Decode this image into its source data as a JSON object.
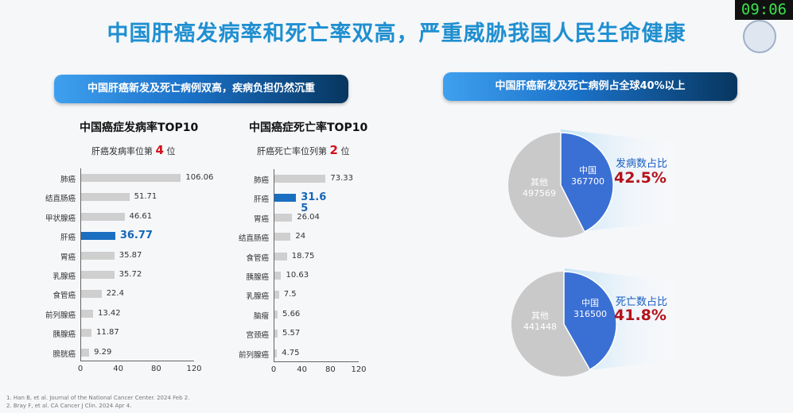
{
  "timer": "09:06",
  "title": "中国肝癌发病率和死亡率双高，严重威胁我国人民生命健康",
  "banner_left": "中国肝癌新发及死亡病例双高，疾病负担仍然沉重",
  "banner_right": "中国肝癌新发及死亡病例占全球40%以上",
  "incidence": {
    "title": "中国癌症发病率TOP10",
    "subtitle_pre": "肝癌发病率位第",
    "rank": "4",
    "subtitle_post": "位",
    "highlight_index": 3,
    "categories": [
      "肺癌",
      "结直肠癌",
      "甲状腺癌",
      "肝癌",
      "胃癌",
      "乳腺癌",
      "食管癌",
      "前列腺癌",
      "胰腺癌",
      "膀胱癌"
    ],
    "values": [
      106.06,
      51.71,
      46.61,
      36.77,
      35.87,
      35.72,
      22.4,
      13.42,
      11.87,
      9.29
    ],
    "value_labels": [
      "106.06",
      "51.71",
      "46.61",
      "36.77",
      "35.87",
      "35.72",
      "22.4",
      "13.42",
      "11.87",
      "9.29"
    ],
    "ticks": [
      "0",
      "40",
      "80",
      "120"
    ],
    "xlim": [
      0,
      120
    ]
  },
  "mortality": {
    "title": "中国癌症死亡率TOP10",
    "subtitle_pre": "肝癌死亡率位列第",
    "rank": "2",
    "subtitle_post": "位",
    "highlight_index": 1,
    "categories": [
      "肺癌",
      "肝癌",
      "胃癌",
      "结直肠癌",
      "食管癌",
      "胰腺癌",
      "乳腺癌",
      "脑瘤",
      "宫颈癌",
      "前列腺癌"
    ],
    "values": [
      73.33,
      31.65,
      26.04,
      24,
      18.75,
      10.63,
      7.5,
      5.66,
      5.57,
      4.75
    ],
    "value_labels": [
      "73.33",
      "31.6\n5",
      "26.04",
      "24",
      "18.75",
      "10.63",
      "7.5",
      "5.66",
      "5.57",
      "4.75"
    ],
    "ticks": [
      "0",
      "40",
      "80",
      "120"
    ],
    "xlim": [
      0,
      120
    ]
  },
  "pie_incidence": {
    "china_label": "中国",
    "china_value": "367700",
    "other_label": "其他",
    "other_value": "497569",
    "share_title": "发病数占比",
    "share_value": "42.5%",
    "fraction": 0.425
  },
  "pie_mortality": {
    "china_label": "中国",
    "china_value": "316500",
    "other_label": "其他",
    "other_value": "441448",
    "share_title": "死亡数占比",
    "share_value": "41.8%",
    "fraction": 0.418
  },
  "colors": {
    "china": "#3a6fd4",
    "other": "#c9c9c9",
    "highlight_bar": "#1a6fc0",
    "bar": "#cfcfcf"
  },
  "footnotes": [
    "1.    Han B, et al. Journal of the National Cancer Center. 2024 Feb 2.",
    "2.    Bray F, et al. CA Cancer J Clin. 2024 Apr 4."
  ]
}
